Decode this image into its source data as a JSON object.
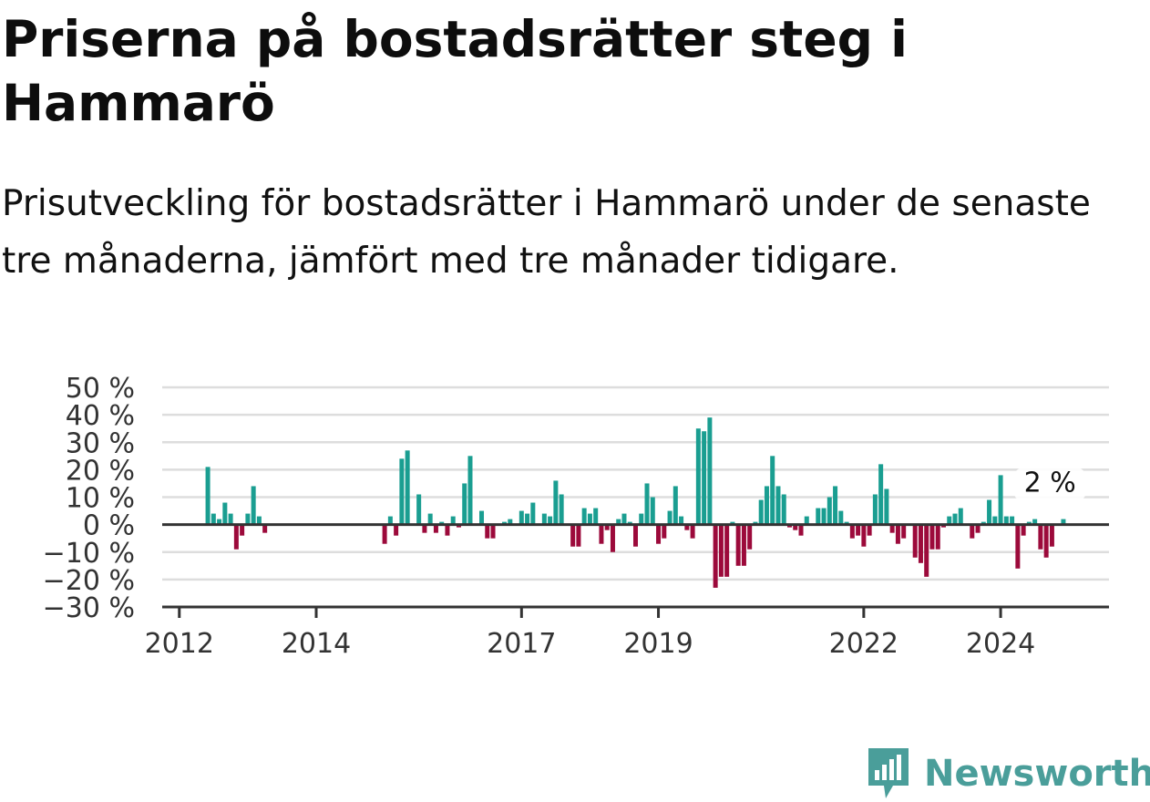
{
  "title": "Priserna på bostadsrätter steg i Hammarö",
  "subtitle": "Prisutveckling för bostadsrätter i Hammarö under de senaste tre månaderna, jämfört med tre månader tidigare.",
  "brand": {
    "name": "Newsworthy",
    "color": "#4a9e9a"
  },
  "colors": {
    "positive": "#1a9e91",
    "negative": "#9c0a3b",
    "grid": "#dddddd",
    "axis": "#333333"
  },
  "chart_data": {
    "type": "bar",
    "x_unit": "month",
    "ylim": [
      -30,
      50
    ],
    "y_ticks": [
      {
        "value": 50,
        "label": "50 %"
      },
      {
        "value": 40,
        "label": "40 %"
      },
      {
        "value": 30,
        "label": "30 %"
      },
      {
        "value": 20,
        "label": "20 %"
      },
      {
        "value": 10,
        "label": "10 %"
      },
      {
        "value": 0,
        "label": "0 %"
      },
      {
        "value": -10,
        "label": "−10 %"
      },
      {
        "value": -20,
        "label": "−20 %"
      },
      {
        "value": -30,
        "label": "−30 %"
      }
    ],
    "x_ticks": [
      {
        "value": "2012-01",
        "label": "2012"
      },
      {
        "value": "2014-01",
        "label": "2014"
      },
      {
        "value": "2017-01",
        "label": "2017"
      },
      {
        "value": "2019-01",
        "label": "2019"
      },
      {
        "value": "2022-01",
        "label": "2022"
      },
      {
        "value": "2024-01",
        "label": "2024"
      }
    ],
    "grid": true,
    "annotation": {
      "x": "2024-09",
      "y": 2,
      "label": "2 %"
    },
    "data": [
      [
        "2012-06",
        21
      ],
      [
        "2012-07",
        4
      ],
      [
        "2012-08",
        2
      ],
      [
        "2012-09",
        8
      ],
      [
        "2012-10",
        4
      ],
      [
        "2012-11",
        -9
      ],
      [
        "2012-12",
        -4
      ],
      [
        "2013-01",
        4
      ],
      [
        "2013-02",
        14
      ],
      [
        "2013-03",
        3
      ],
      [
        "2013-04",
        -3
      ],
      [
        "2015-01",
        -7
      ],
      [
        "2015-02",
        3
      ],
      [
        "2015-03",
        -4
      ],
      [
        "2015-04",
        24
      ],
      [
        "2015-05",
        27
      ],
      [
        "2015-06",
        0
      ],
      [
        "2015-07",
        11
      ],
      [
        "2015-08",
        -3
      ],
      [
        "2015-09",
        4
      ],
      [
        "2015-10",
        -3
      ],
      [
        "2015-11",
        1
      ],
      [
        "2015-12",
        -4
      ],
      [
        "2016-01",
        3
      ],
      [
        "2016-02",
        -1
      ],
      [
        "2016-03",
        15
      ],
      [
        "2016-04",
        25
      ],
      [
        "2016-05",
        0
      ],
      [
        "2016-06",
        5
      ],
      [
        "2016-07",
        -5
      ],
      [
        "2016-08",
        -5
      ],
      [
        "2016-09",
        0
      ],
      [
        "2016-10",
        1
      ],
      [
        "2016-11",
        2
      ],
      [
        "2016-12",
        0
      ],
      [
        "2017-01",
        5
      ],
      [
        "2017-02",
        4
      ],
      [
        "2017-03",
        8
      ],
      [
        "2017-04",
        0
      ],
      [
        "2017-05",
        4
      ],
      [
        "2017-06",
        3
      ],
      [
        "2017-07",
        16
      ],
      [
        "2017-08",
        11
      ],
      [
        "2017-09",
        0
      ],
      [
        "2017-10",
        -8
      ],
      [
        "2017-11",
        -8
      ],
      [
        "2017-12",
        6
      ],
      [
        "2018-01",
        4
      ],
      [
        "2018-02",
        6
      ],
      [
        "2018-03",
        -7
      ],
      [
        "2018-04",
        -2
      ],
      [
        "2018-05",
        -10
      ],
      [
        "2018-06",
        2
      ],
      [
        "2018-07",
        4
      ],
      [
        "2018-08",
        1
      ],
      [
        "2018-09",
        -8
      ],
      [
        "2018-10",
        4
      ],
      [
        "2018-11",
        15
      ],
      [
        "2018-12",
        10
      ],
      [
        "2019-01",
        -7
      ],
      [
        "2019-02",
        -5
      ],
      [
        "2019-03",
        5
      ],
      [
        "2019-04",
        14
      ],
      [
        "2019-05",
        3
      ],
      [
        "2019-06",
        -2
      ],
      [
        "2019-07",
        -5
      ],
      [
        "2019-08",
        35
      ],
      [
        "2019-09",
        34
      ],
      [
        "2019-10",
        39
      ],
      [
        "2019-11",
        -23
      ],
      [
        "2019-12",
        -19
      ],
      [
        "2020-01",
        -19
      ],
      [
        "2020-02",
        1
      ],
      [
        "2020-03",
        -15
      ],
      [
        "2020-04",
        -15
      ],
      [
        "2020-05",
        -9
      ],
      [
        "2020-06",
        1
      ],
      [
        "2020-07",
        9
      ],
      [
        "2020-08",
        14
      ],
      [
        "2020-09",
        25
      ],
      [
        "2020-10",
        14
      ],
      [
        "2020-11",
        11
      ],
      [
        "2020-12",
        -1
      ],
      [
        "2021-01",
        -2
      ],
      [
        "2021-02",
        -4
      ],
      [
        "2021-03",
        3
      ],
      [
        "2021-04",
        0
      ],
      [
        "2021-05",
        6
      ],
      [
        "2021-06",
        6
      ],
      [
        "2021-07",
        10
      ],
      [
        "2021-08",
        14
      ],
      [
        "2021-09",
        5
      ],
      [
        "2021-10",
        1
      ],
      [
        "2021-11",
        -5
      ],
      [
        "2021-12",
        -4
      ],
      [
        "2022-01",
        -8
      ],
      [
        "2022-02",
        -4
      ],
      [
        "2022-03",
        11
      ],
      [
        "2022-04",
        22
      ],
      [
        "2022-05",
        13
      ],
      [
        "2022-06",
        -3
      ],
      [
        "2022-07",
        -7
      ],
      [
        "2022-08",
        -5
      ],
      [
        "2022-09",
        0
      ],
      [
        "2022-10",
        -12
      ],
      [
        "2022-11",
        -14
      ],
      [
        "2022-12",
        -19
      ],
      [
        "2023-01",
        -9
      ],
      [
        "2023-02",
        -9
      ],
      [
        "2023-03",
        -1
      ],
      [
        "2023-04",
        3
      ],
      [
        "2023-05",
        4
      ],
      [
        "2023-06",
        6
      ],
      [
        "2023-07",
        0
      ],
      [
        "2023-08",
        -5
      ],
      [
        "2023-09",
        -3
      ],
      [
        "2023-10",
        1
      ],
      [
        "2023-11",
        9
      ],
      [
        "2023-12",
        3
      ],
      [
        "2024-01",
        18
      ],
      [
        "2024-02",
        3
      ],
      [
        "2024-03",
        3
      ],
      [
        "2024-04",
        -16
      ],
      [
        "2024-05",
        -4
      ],
      [
        "2024-06",
        1
      ],
      [
        "2024-07",
        2
      ],
      [
        "2024-08",
        -9
      ],
      [
        "2024-09",
        -12
      ],
      [
        "2024-10",
        -8
      ],
      [
        "2024-11",
        0
      ],
      [
        "2024-12",
        2
      ]
    ]
  }
}
